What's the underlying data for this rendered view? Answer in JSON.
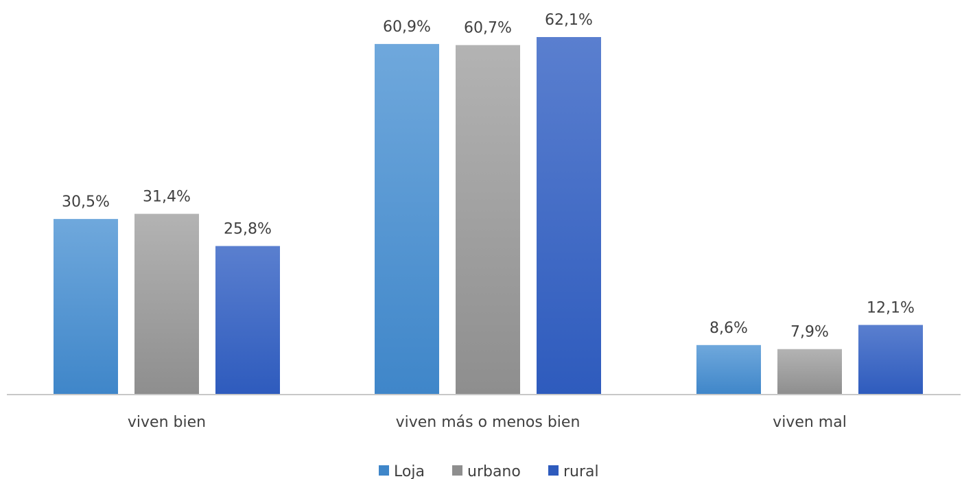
{
  "chart_data": {
    "type": "bar",
    "categories": [
      "viven bien",
      "viven más o menos bien",
      "viven mal"
    ],
    "series": [
      {
        "name": "Loja",
        "values": [
          30.5,
          60.9,
          8.6
        ],
        "labels": [
          "30,5%",
          "60,9%",
          "8,6%"
        ]
      },
      {
        "name": "urbano",
        "values": [
          31.4,
          60.7,
          7.9
        ],
        "labels": [
          "31,4%",
          "60,7%",
          "7,9%"
        ]
      },
      {
        "name": "rural",
        "values": [
          25.8,
          62.1,
          12.1
        ],
        "labels": [
          "25,8%",
          "62,1%",
          "12,1%"
        ]
      }
    ],
    "ylim": [
      0,
      62.1
    ],
    "grid": false,
    "legend_position": "bottom-center",
    "colors": {
      "Loja": [
        "#6fa8dc",
        "#3f86c9"
      ],
      "urbano": [
        "#b3b3b3",
        "#8e8e8e"
      ],
      "rural": [
        "#5a7fcf",
        "#2e5bbd"
      ],
      "axis": "#c8c8c8"
    }
  }
}
